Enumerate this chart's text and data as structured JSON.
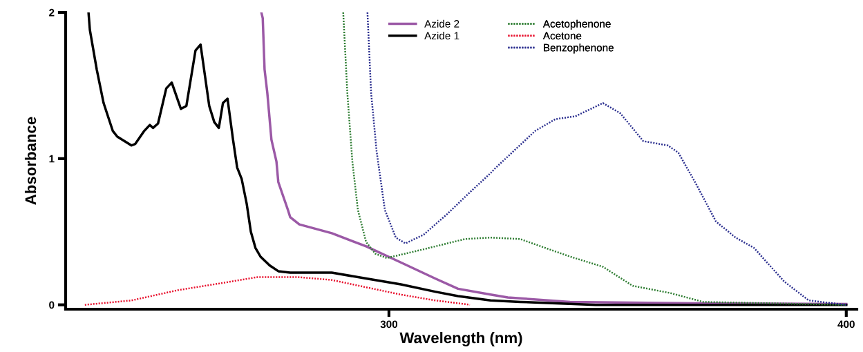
{
  "chart_data": {
    "type": "line",
    "xlabel": "Wavelength (nm)",
    "ylabel": "Absorbance",
    "xlim": [
      229.3,
      402.3
    ],
    "ylim": [
      -0.03,
      2
    ],
    "xticks": [
      300,
      400
    ],
    "yticks": [
      0,
      1,
      2
    ],
    "grid": false,
    "legend": "top",
    "marker": "none",
    "series": [
      {
        "name": "Azide 2",
        "color": "#9b59a6",
        "line_style": "solid",
        "x": [
          272.1,
          272.4,
          272.8,
          273.4,
          274.3,
          275.4,
          275.8,
          277.9,
          278.4,
          280.4,
          287.5,
          295,
          302.6,
          310.1,
          315.1,
          322.2,
          326,
          339.6,
          367.1,
          400
        ],
        "values": [
          2.0,
          1.96,
          1.61,
          1.45,
          1.13,
          0.98,
          0.84,
          0.65,
          0.6,
          0.55,
          0.49,
          0.4,
          0.29,
          0.18,
          0.11,
          0.07,
          0.05,
          0.02,
          0.01,
          0.005
        ]
      },
      {
        "name": "Azide 1",
        "color": "#000000",
        "line_style": "solid",
        "x": [
          234.3,
          234.6,
          236.1,
          237.6,
          239.6,
          240.6,
          243.7,
          244.5,
          246.5,
          247.7,
          248.4,
          249.5,
          251.3,
          252.5,
          254.5,
          255.7,
          257.7,
          258.8,
          260.7,
          261.8,
          262.8,
          263.7,
          264.7,
          265.9,
          266.8,
          267.8,
          268.9,
          269.8,
          270.8,
          271.9,
          273.9,
          275.8,
          278.4,
          287.5,
          295,
          302.6,
          310.1,
          315.1,
          322.2,
          328.7,
          345.2,
          400
        ],
        "values": [
          2.0,
          1.88,
          1.61,
          1.38,
          1.19,
          1.15,
          1.09,
          1.1,
          1.19,
          1.23,
          1.21,
          1.24,
          1.48,
          1.52,
          1.34,
          1.36,
          1.74,
          1.78,
          1.36,
          1.25,
          1.21,
          1.38,
          1.41,
          1.13,
          0.94,
          0.86,
          0.69,
          0.5,
          0.39,
          0.33,
          0.27,
          0.23,
          0.22,
          0.22,
          0.18,
          0.14,
          0.09,
          0.06,
          0.03,
          0.02,
          0.0,
          0.0
        ]
      },
      {
        "name": "Acetophenone",
        "color": "#2e7d32",
        "line_style": "dotted",
        "x": [
          290.0,
          290.9,
          292,
          293.2,
          295,
          297,
          299.5,
          307.6,
          316.6,
          322.2,
          328.7,
          334.1,
          339.6,
          346.8,
          353.3,
          361.6,
          368.7,
          400
        ],
        "values": [
          2.0,
          1.45,
          0.98,
          0.65,
          0.43,
          0.35,
          0.32,
          0.38,
          0.45,
          0.46,
          0.45,
          0.39,
          0.33,
          0.26,
          0.13,
          0.08,
          0.02,
          0.0
        ]
      },
      {
        "name": "Acetone",
        "color": "#e8112d",
        "line_style": "dotted",
        "x": [
          233.5,
          243.7,
          253.8,
          263.7,
          271.3,
          278.4,
          279.9,
          287.5,
          295,
          302.6,
          310.1,
          317.7
        ],
        "values": [
          0.0,
          0.03,
          0.1,
          0.15,
          0.19,
          0.19,
          0.19,
          0.17,
          0.12,
          0.07,
          0.03,
          0.0
        ]
      },
      {
        "name": "Benzophenone",
        "color": "#2b2f8f",
        "line_style": "dotted",
        "x": [
          295.3,
          296.1,
          297.3,
          299.1,
          301.5,
          303.6,
          307.6,
          312.7,
          317.7,
          322.2,
          323.1,
          332,
          336.4,
          340.8,
          346.8,
          350.6,
          355.6,
          361,
          363.3,
          367.1,
          371.5,
          375.8,
          379.8,
          386.4,
          391.8,
          400
        ],
        "values": [
          2.0,
          1.45,
          1.05,
          0.65,
          0.46,
          0.42,
          0.48,
          0.62,
          0.77,
          0.9,
          0.93,
          1.19,
          1.27,
          1.29,
          1.38,
          1.31,
          1.12,
          1.09,
          1.04,
          0.83,
          0.57,
          0.46,
          0.39,
          0.16,
          0.03,
          0.0
        ]
      }
    ]
  }
}
